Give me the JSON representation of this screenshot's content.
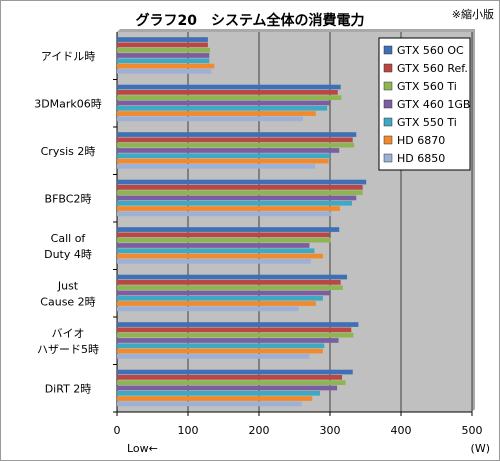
{
  "chart_data": {
    "type": "bar",
    "orientation": "horizontal",
    "title": "グラフ20　システム全体の消費電力",
    "note": "※縮小版",
    "categories": [
      [
        "アイドル時"
      ],
      [
        "3DMark06時"
      ],
      [
        "Crysis 2時"
      ],
      [
        "BFBC2時"
      ],
      [
        "Call of",
        "Duty 4時"
      ],
      [
        "Just",
        "Cause 2時"
      ],
      [
        "バイオ",
        "ハザード5時"
      ],
      [
        "DiRT 2時"
      ]
    ],
    "series": [
      {
        "name": "GTX 560 OC",
        "color": "#3f6fb4",
        "values": [
          128,
          315,
          337,
          351,
          313,
          324,
          340,
          332
        ]
      },
      {
        "name": "GTX 560 Ref.",
        "color": "#b94845",
        "values": [
          128,
          311,
          332,
          346,
          299,
          315,
          330,
          317
        ]
      },
      {
        "name": "GTX 560 Ti",
        "color": "#8db653",
        "values": [
          131,
          316,
          334,
          346,
          301,
          318,
          333,
          322
        ]
      },
      {
        "name": "GTX 460 1GB",
        "color": "#7a5ea0",
        "values": [
          130,
          299,
          313,
          337,
          271,
          300,
          312,
          310
        ]
      },
      {
        "name": "GTX 550 Ti",
        "color": "#3fa8c2",
        "values": [
          130,
          296,
          300,
          331,
          278,
          290,
          292,
          286
        ]
      },
      {
        "name": "HD 6870",
        "color": "#f08a2c",
        "values": [
          137,
          280,
          298,
          314,
          290,
          280,
          290,
          275
        ]
      },
      {
        "name": "HD 6850",
        "color": "#9db0d6",
        "values": [
          133,
          262,
          279,
          302,
          273,
          256,
          271,
          260
        ]
      }
    ],
    "xlim": [
      0,
      500
    ],
    "xticks": [
      0,
      100,
      200,
      300,
      400,
      500
    ],
    "xlabel_left": "Low←",
    "xlabel_right": "(W)",
    "grid": true,
    "legend_position": "top-right",
    "plot_background": "#c0c0c0",
    "grid_color": "#404040"
  }
}
